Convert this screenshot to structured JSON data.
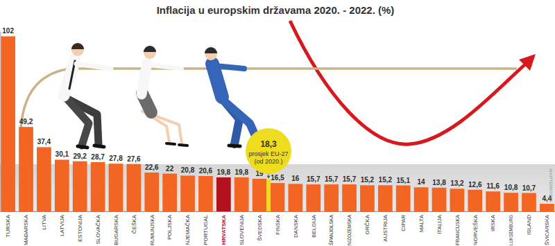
{
  "chart_data": {
    "type": "bar",
    "title": "Inflacija u europskim državama 2020. - 2022. (%)",
    "categories": [
      "TURSKA",
      "MAĐARSKA",
      "LITVA",
      "LATVIJA",
      "ESTONIJA",
      "SLOVAČKA",
      "BUGARSKA",
      "ČEŠKA",
      "RUMUNJSKA",
      "POLJSKA",
      "NJEMAČKA",
      "PORTUGAL",
      "HRVATSKA",
      "SLOVENIJA",
      "ŠVEDSKA",
      "FINSKA",
      "DANSKA",
      "BELGIJA",
      "ŠPANJOLSKA",
      "NIZOZEMSKA",
      "GRČKA",
      "AUSTRIJA",
      "CIPAR",
      "MALTA",
      "ITALIJA",
      "FRANCUSKA",
      "NORVEŠKA",
      "IRSKA",
      "LUKSEMBURG",
      "ISLAND",
      "ŠVICARSKA"
    ],
    "values": [
      102,
      49.2,
      37.4,
      30.1,
      29.2,
      28.7,
      27.8,
      27.6,
      22.6,
      22,
      20.8,
      20.6,
      19.8,
      19.8,
      19,
      16.5,
      16,
      15.7,
      15.7,
      15.7,
      15.2,
      15.2,
      15.1,
      14,
      13.8,
      13.2,
      12.6,
      11.6,
      10.8,
      10.7,
      4.4
    ],
    "value_labels": [
      "102",
      "49,2",
      "37,4",
      "30,1",
      "29,2",
      "28,7",
      "27,8",
      "27,6",
      "22,6",
      "22",
      "20,8",
      "20,6",
      "19,8",
      "19,8",
      "19",
      "16,5",
      "16",
      "15,7",
      "15,7",
      "15,7",
      "15,2",
      "15,2",
      "15,1",
      "14",
      "13,8",
      "13,2",
      "12,6",
      "11,6",
      "10,8",
      "10,7",
      "4,4"
    ],
    "colors": [
      "#f26522",
      "#f26522",
      "#f26522",
      "#f26522",
      "#f26522",
      "#f26522",
      "#f26522",
      "#f26522",
      "#f26522",
      "#f26522",
      "#f26522",
      "#f26522",
      "#b3121d",
      "#f26522",
      "#f26522",
      "#f26522",
      "#f26522",
      "#f26522",
      "#f26522",
      "#f26522",
      "#f26522",
      "#f26522",
      "#f26522",
      "#f26522",
      "#f26522",
      "#f26522",
      "#f26522",
      "#f26522",
      "#f26522",
      "#f26522",
      "#f26522"
    ],
    "ylim": [
      0,
      105
    ],
    "data_labels": true,
    "tick_labels": "x",
    "grid": false,
    "annotations": [
      {
        "value": 18.3,
        "label": "18,3",
        "text": [
          "prosjek EU-27",
          "(od 2020.)"
        ],
        "color": "#eedc1f"
      }
    ],
    "credit": "SHUTTERSTOCK"
  }
}
